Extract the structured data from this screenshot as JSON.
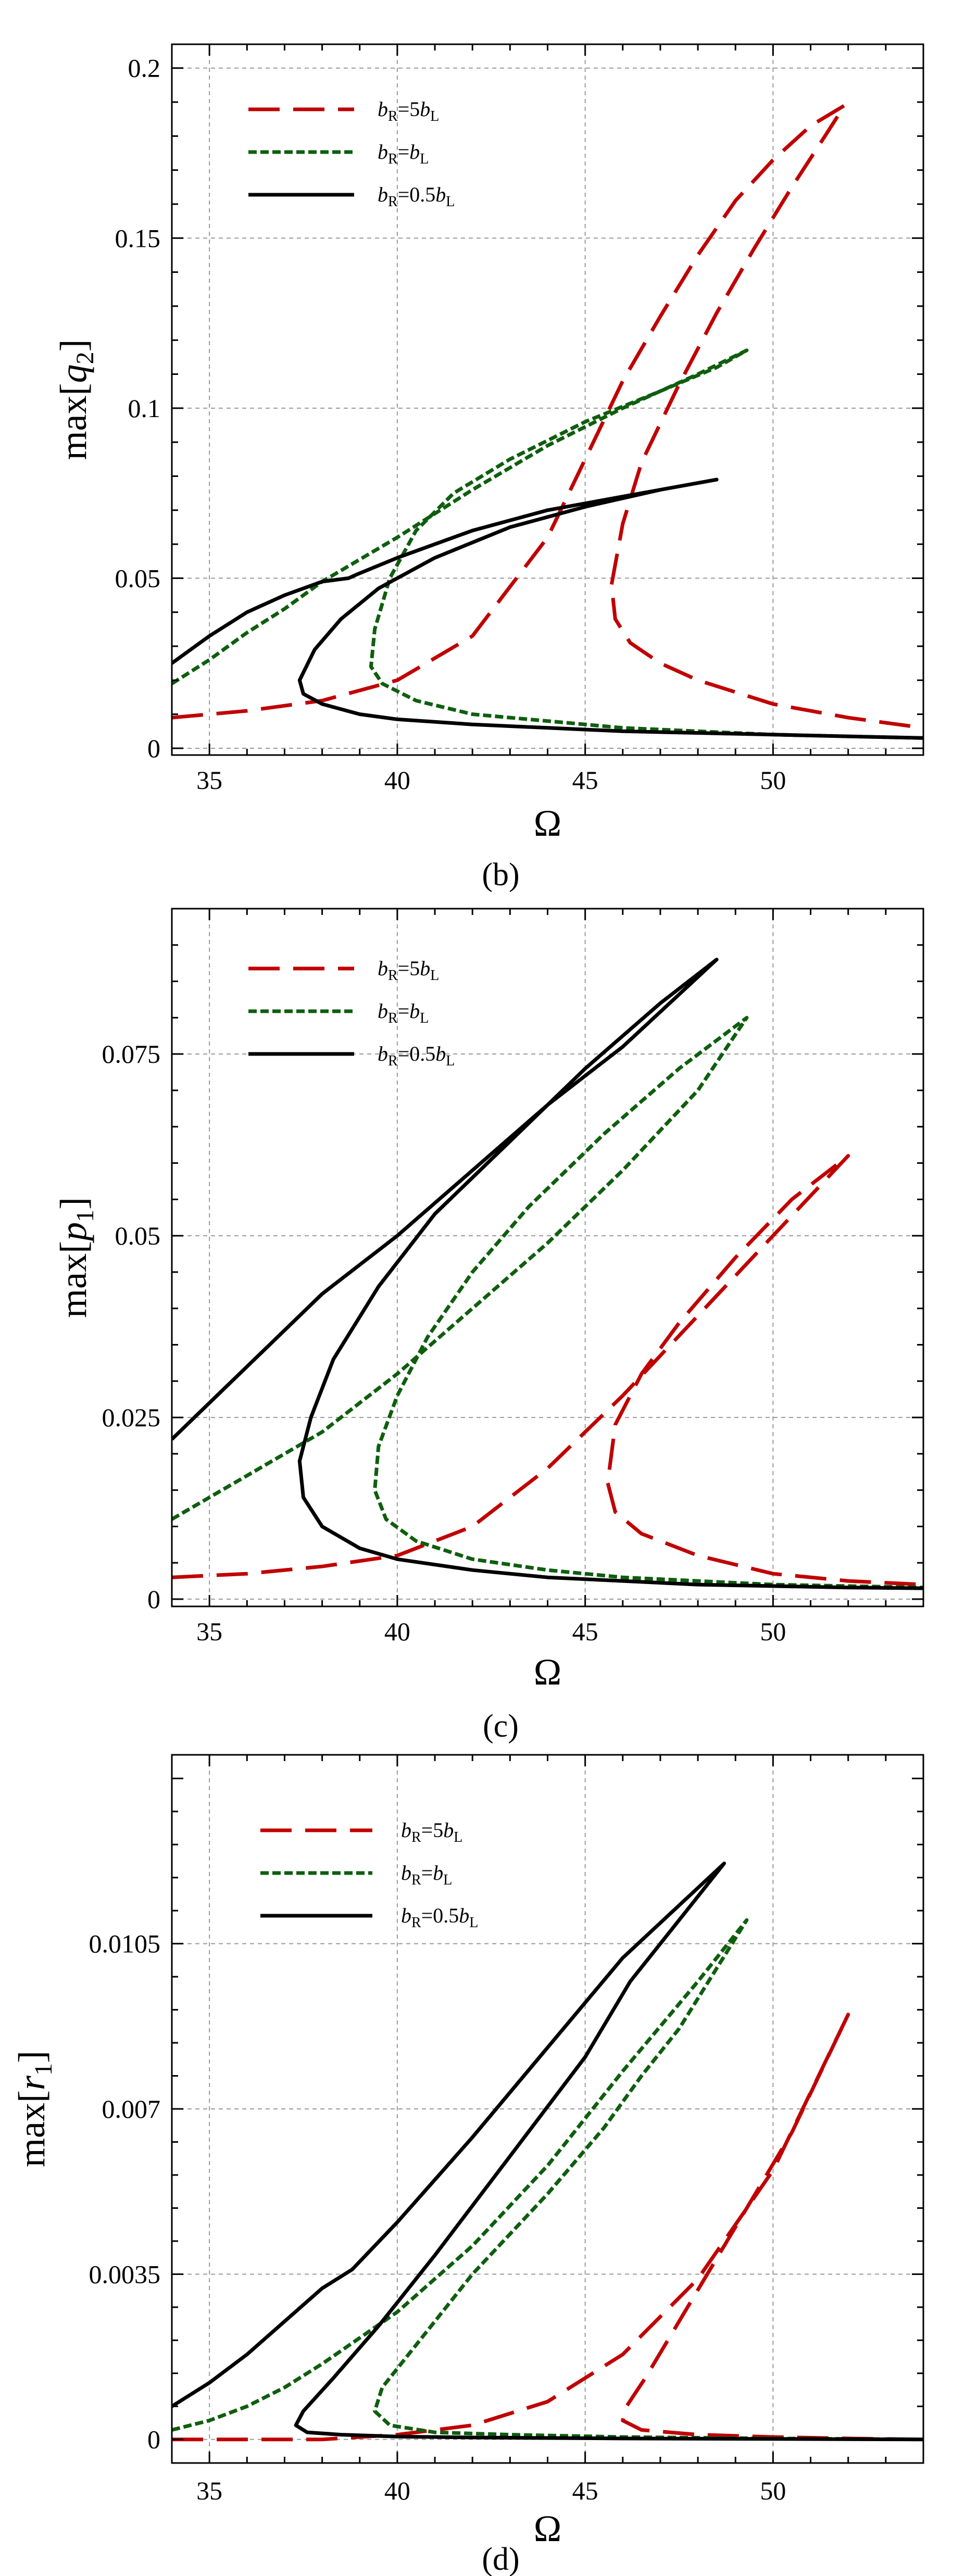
{
  "chart_data": [
    {
      "type": "line",
      "panel": "b",
      "caption": "(b)",
      "xlabel": "Ω",
      "ylabel": {
        "base": "max[",
        "var": "q",
        "sub": "2",
        "close": "]"
      },
      "xlim": [
        34,
        54
      ],
      "ylim": [
        -0.002,
        0.207
      ],
      "xticks": [
        35,
        40,
        45,
        50
      ],
      "xtick_labels": [
        "35",
        "40",
        "45",
        "50"
      ],
      "yticks": [
        0,
        0.05,
        0.1,
        0.15,
        0.2
      ],
      "ytick_labels": [
        "0",
        "0.05",
        "0.1",
        "0.15",
        "0.2"
      ],
      "grid": true,
      "legend_position": "top-left",
      "series": [
        {
          "name": "bR=5bL",
          "label": {
            "a": "b",
            "a_sub": "R",
            "eq": "=5",
            "b": "b",
            "b_sub": "L"
          },
          "style": "red-long-dash",
          "x": [
            34,
            36,
            38,
            40,
            42,
            44,
            45,
            46,
            47,
            48,
            49,
            50,
            51,
            51.9,
            51.5,
            50.5,
            49.5,
            48.5,
            47.5,
            46.5,
            46.0,
            45.7,
            45.8,
            46.2,
            47,
            48,
            50,
            52,
            54
          ],
          "y": [
            0.009,
            0.011,
            0.014,
            0.02,
            0.033,
            0.062,
            0.085,
            0.108,
            0.127,
            0.145,
            0.161,
            0.173,
            0.183,
            0.189,
            0.182,
            0.165,
            0.147,
            0.128,
            0.107,
            0.084,
            0.066,
            0.048,
            0.038,
            0.031,
            0.025,
            0.02,
            0.013,
            0.009,
            0.006
          ]
        },
        {
          "name": "bR=bL",
          "label": {
            "a": "b",
            "a_sub": "R",
            "eq": "=",
            "b": "b",
            "b_sub": "L"
          },
          "style": "green-short-dash",
          "x": [
            34,
            35,
            36,
            37,
            38,
            40,
            42,
            44,
            46,
            48,
            49.3,
            48.5,
            47,
            45,
            43,
            41.5,
            40.5,
            39.8,
            39.4,
            39.3,
            39.6,
            40.5,
            42,
            44,
            46,
            48,
            50,
            52,
            54
          ],
          "y": [
            0.019,
            0.026,
            0.034,
            0.041,
            0.049,
            0.062,
            0.076,
            0.089,
            0.1,
            0.11,
            0.117,
            0.112,
            0.105,
            0.096,
            0.085,
            0.075,
            0.064,
            0.05,
            0.035,
            0.024,
            0.019,
            0.014,
            0.01,
            0.008,
            0.006,
            0.005,
            0.004,
            0.0035,
            0.003
          ]
        },
        {
          "name": "bR=0.5bL",
          "label": {
            "a": "b",
            "a_sub": "R",
            "eq": "=0.5",
            "b": "b",
            "b_sub": "L"
          },
          "style": "black-solid",
          "x": [
            34,
            35,
            36,
            37,
            38,
            38.7,
            38.9,
            40,
            42,
            44,
            46,
            48.5,
            47,
            45,
            43,
            41,
            39.5,
            38.5,
            37.8,
            37.4,
            37.5,
            38,
            39,
            40,
            42,
            44,
            46,
            48,
            50,
            52,
            54
          ],
          "y": [
            0.025,
            0.033,
            0.04,
            0.045,
            0.049,
            0.05,
            0.051,
            0.056,
            0.064,
            0.07,
            0.074,
            0.079,
            0.076,
            0.071,
            0.065,
            0.056,
            0.047,
            0.038,
            0.029,
            0.02,
            0.016,
            0.013,
            0.01,
            0.0085,
            0.007,
            0.006,
            0.005,
            0.0045,
            0.004,
            0.0035,
            0.003
          ]
        }
      ]
    },
    {
      "type": "line",
      "panel": "c",
      "caption": "(c)",
      "xlabel": "Ω",
      "ylabel": {
        "base": "max[",
        "var": "p",
        "sub": "1",
        "close": "]"
      },
      "xlim": [
        34,
        54
      ],
      "ylim": [
        -0.001,
        0.095
      ],
      "xticks": [
        35,
        40,
        45,
        50
      ],
      "xtick_labels": [
        "35",
        "40",
        "45",
        "50"
      ],
      "yticks": [
        0,
        0.025,
        0.05,
        0.075
      ],
      "ytick_labels": [
        "0",
        "0.025",
        "0.05",
        "0.075"
      ],
      "grid": true,
      "legend_position": "top-left",
      "series": [
        {
          "name": "bR=5bL",
          "label": {
            "a": "b",
            "a_sub": "R",
            "eq": "=5",
            "b": "b",
            "b_sub": "L"
          },
          "style": "red-long-dash",
          "x": [
            34,
            36,
            38,
            40,
            42,
            44,
            46,
            48,
            50,
            52,
            50.5,
            49,
            47.5,
            46.5,
            45.8,
            45.6,
            45.8,
            46.5,
            48,
            50,
            52,
            54
          ],
          "y": [
            0.003,
            0.0035,
            0.0045,
            0.006,
            0.01,
            0.018,
            0.028,
            0.039,
            0.05,
            0.061,
            0.055,
            0.047,
            0.038,
            0.031,
            0.024,
            0.016,
            0.012,
            0.009,
            0.006,
            0.0035,
            0.0025,
            0.002
          ]
        },
        {
          "name": "bR=bL",
          "label": {
            "a": "b",
            "a_sub": "R",
            "eq": "=",
            "b": "b",
            "b_sub": "L"
          },
          "style": "green-short-dash",
          "x": [
            34,
            36,
            38,
            40,
            42,
            44,
            46,
            48,
            49.3,
            47.5,
            45.5,
            43.5,
            42,
            40.8,
            40,
            39.5,
            39.4,
            39.7,
            40.5,
            42,
            44,
            46,
            48,
            50,
            52,
            54
          ],
          "y": [
            0.011,
            0.017,
            0.023,
            0.031,
            0.04,
            0.049,
            0.059,
            0.07,
            0.08,
            0.073,
            0.064,
            0.054,
            0.045,
            0.036,
            0.028,
            0.021,
            0.015,
            0.011,
            0.008,
            0.0055,
            0.004,
            0.003,
            0.0025,
            0.002,
            0.0018,
            0.0016
          ]
        },
        {
          "name": "bR=0.5bL",
          "label": {
            "a": "b",
            "a_sub": "R",
            "eq": "=0.5",
            "b": "b",
            "b_sub": "L"
          },
          "style": "black-solid",
          "x": [
            34,
            35,
            36,
            37,
            38,
            40,
            42,
            44,
            46,
            48.5,
            47,
            45,
            43,
            41,
            39.5,
            38.3,
            37.7,
            37.4,
            37.5,
            38,
            39,
            40,
            42,
            44,
            46,
            48,
            50,
            52,
            54
          ],
          "y": [
            0.022,
            0.027,
            0.032,
            0.037,
            0.042,
            0.05,
            0.059,
            0.068,
            0.076,
            0.088,
            0.082,
            0.073,
            0.063,
            0.053,
            0.043,
            0.033,
            0.025,
            0.019,
            0.014,
            0.01,
            0.007,
            0.0055,
            0.004,
            0.003,
            0.0025,
            0.002,
            0.0018,
            0.0016,
            0.0015
          ]
        }
      ]
    },
    {
      "type": "line",
      "panel": "d",
      "caption": "(d)",
      "xlabel": "Ω",
      "ylabel": {
        "base": "max[",
        "var": "r",
        "sub": "1",
        "close": "]"
      },
      "xlim": [
        34,
        54
      ],
      "ylim": [
        -0.0005,
        0.0145
      ],
      "xticks": [
        35,
        40,
        45,
        50
      ],
      "xtick_labels": [
        "35",
        "40",
        "45",
        "50"
      ],
      "yticks": [
        0,
        0.0035,
        0.007,
        0.0105
      ],
      "ytick_labels": [
        "0",
        "0.0035",
        "0.007",
        "0.0105"
      ],
      "grid": true,
      "legend_position": "top-left",
      "series": [
        {
          "name": "bR=5bL",
          "label": {
            "a": "b",
            "a_sub": "R",
            "eq": "=5",
            "b": "b",
            "b_sub": "L"
          },
          "style": "red-long-dash",
          "x": [
            34,
            38,
            40,
            42,
            44,
            46,
            48,
            50,
            52,
            50.5,
            49,
            47.5,
            46.6,
            46.1,
            46.0,
            46.5,
            48,
            50,
            52,
            54
          ],
          "y": [
            0,
            0,
            0.0001,
            0.0003,
            0.0008,
            0.0018,
            0.0034,
            0.0057,
            0.009,
            0.0065,
            0.0045,
            0.0025,
            0.0013,
            0.0007,
            0.0004,
            0.0002,
            0.0001,
            5e-05,
            2e-05,
            0
          ]
        },
        {
          "name": "bR=bL",
          "label": {
            "a": "b",
            "a_sub": "R",
            "eq": "=",
            "b": "b",
            "b_sub": "L"
          },
          "style": "green-short-dash",
          "x": [
            34,
            35,
            36,
            37,
            38,
            40,
            42,
            44,
            46,
            48,
            49.3,
            47.5,
            46.5,
            45.5,
            44,
            42,
            40.5,
            39.6,
            39.4,
            39.8,
            41,
            43,
            46,
            50,
            54
          ],
          "y": [
            0.0002,
            0.0004,
            0.0007,
            0.0011,
            0.0016,
            0.0027,
            0.0041,
            0.0058,
            0.0078,
            0.0097,
            0.011,
            0.0087,
            0.0077,
            0.0066,
            0.0052,
            0.0035,
            0.002,
            0.0011,
            0.0006,
            0.0003,
            0.00015,
            0.0001,
            5e-05,
            2e-05,
            0
          ]
        },
        {
          "name": "bR=0.5bL",
          "label": {
            "a": "b",
            "a_sub": "R",
            "eq": "=0.5",
            "b": "b",
            "b_sub": "L"
          },
          "style": "black-solid",
          "x": [
            34,
            35,
            36,
            37,
            38,
            38.8,
            40,
            42,
            44,
            46,
            48.7,
            47,
            46.2,
            45,
            43,
            41,
            39.5,
            38.3,
            37.5,
            37.3,
            37.6,
            38.5,
            40,
            42,
            46,
            50,
            54
          ],
          "y": [
            0.0007,
            0.0012,
            0.0018,
            0.0025,
            0.0032,
            0.0036,
            0.0046,
            0.0064,
            0.0083,
            0.0102,
            0.0122,
            0.0105,
            0.0097,
            0.0081,
            0.006,
            0.0039,
            0.0024,
            0.0013,
            0.0006,
            0.0003,
            0.00015,
            0.0001,
            6e-05,
            4e-05,
            2e-05,
            1e-05,
            0
          ]
        }
      ]
    }
  ]
}
